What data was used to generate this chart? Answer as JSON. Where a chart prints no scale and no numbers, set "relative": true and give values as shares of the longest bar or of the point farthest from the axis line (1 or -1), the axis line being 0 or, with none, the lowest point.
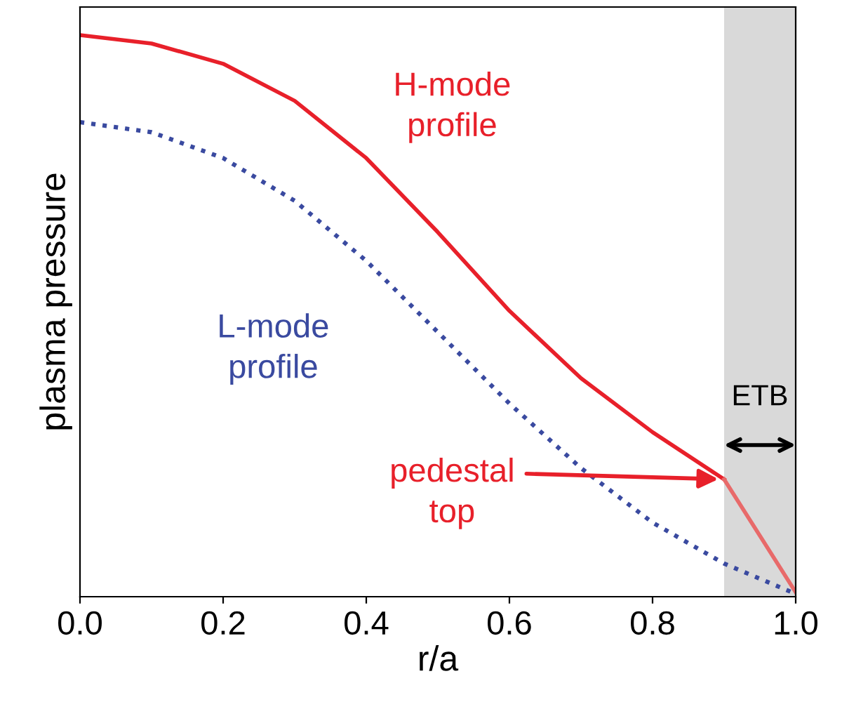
{
  "chart_data": {
    "type": "line",
    "relative": true,
    "xlabel": "r/a",
    "ylabel": "plasma pressure",
    "x": [
      0.0,
      0.1,
      0.2,
      0.3,
      0.4,
      0.5,
      0.6,
      0.7,
      0.8,
      0.9,
      1.0
    ],
    "xlim": [
      0,
      1
    ],
    "xticks": [
      {
        "value": 0,
        "label": "0.0"
      },
      0.2,
      0.4,
      0.6,
      0.8,
      {
        "value": 1,
        "label": "1.0"
      }
    ],
    "grid": false,
    "legend": false,
    "series": [
      {
        "name": "H-mode profile",
        "color": "#e8202a",
        "line_style": "solid",
        "x": [
          0.0,
          0.1,
          0.2,
          0.3,
          0.4,
          0.5,
          0.6,
          0.7,
          0.8,
          0.9
        ],
        "values": [
          1,
          0.985,
          0.949,
          0.883,
          0.781,
          0.649,
          0.509,
          0.389,
          0.293,
          0.209
        ]
      },
      {
        "color": "#e86a6a",
        "line_style": "solid",
        "x": [
          0.9,
          1.0
        ],
        "values": [
          0.209,
          0.008
        ]
      },
      {
        "name": "L-mode profile",
        "color": "#3a4aa0",
        "line_style": "dotted",
        "values": [
          0.845,
          0.827,
          0.781,
          0.705,
          0.598,
          0.471,
          0.344,
          0.229,
          0.132,
          0.059,
          0.005
        ]
      }
    ],
    "bands": [
      {
        "axis": "x",
        "from": 0.9,
        "to": 1.0,
        "label": "ETB",
        "color": "#d9d9d9"
      }
    ],
    "annotations": [
      {
        "text": "pedestal top",
        "x": 0.9,
        "y": 0.209
      }
    ]
  }
}
